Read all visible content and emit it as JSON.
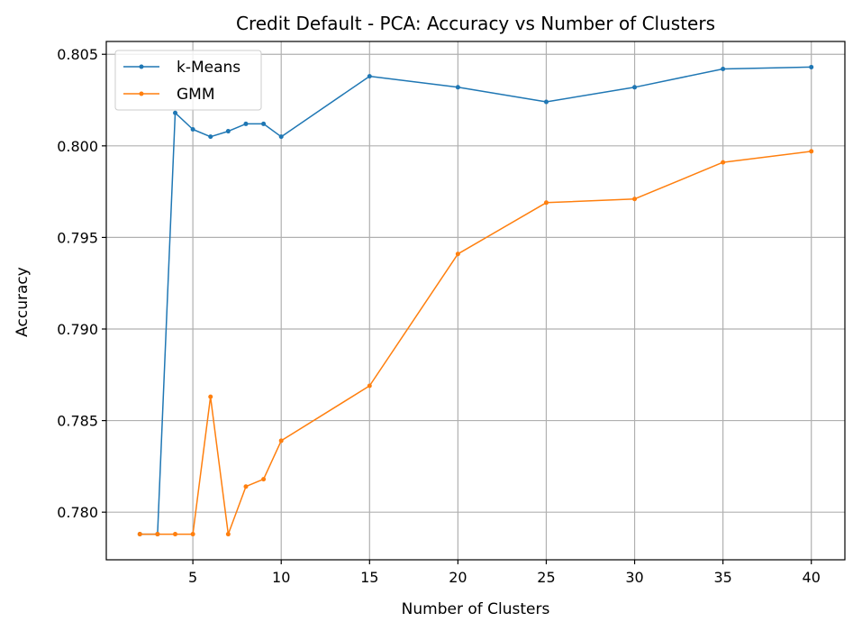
{
  "chart_data": {
    "type": "line",
    "title": "Credit Default - PCA: Accuracy vs Number of Clusters",
    "xlabel": "Number of Clusters",
    "ylabel": "Accuracy",
    "xlim": [
      0.1,
      41.9
    ],
    "ylim": [
      0.7774,
      0.8057
    ],
    "xticks": [
      5,
      10,
      15,
      20,
      25,
      30,
      35,
      40
    ],
    "xtick_labels": [
      "5",
      "10",
      "15",
      "20",
      "25",
      "30",
      "35",
      "40"
    ],
    "yticks": [
      0.78,
      0.785,
      0.79,
      0.795,
      0.8,
      0.805
    ],
    "ytick_labels": [
      "0.780",
      "0.785",
      "0.790",
      "0.795",
      "0.800",
      "0.805"
    ],
    "grid": true,
    "legend_position": "upper-left",
    "series": [
      {
        "name": "k-Means",
        "color": "#1f77b4",
        "x": [
          2,
          3,
          4,
          5,
          6,
          7,
          8,
          9,
          10,
          15,
          20,
          25,
          30,
          35,
          40
        ],
        "y": [
          0.7788,
          0.7788,
          0.8018,
          0.8009,
          0.8005,
          0.8008,
          0.8012,
          0.8012,
          0.8005,
          0.8038,
          0.8032,
          0.8024,
          0.8032,
          0.8042,
          0.8043
        ]
      },
      {
        "name": "GMM",
        "color": "#ff7f0e",
        "x": [
          2,
          3,
          4,
          5,
          6,
          7,
          8,
          9,
          10,
          15,
          20,
          25,
          30,
          35,
          40
        ],
        "y": [
          0.7788,
          0.7788,
          0.7788,
          0.7788,
          0.7863,
          0.7788,
          0.7814,
          0.7818,
          0.7839,
          0.7869,
          0.7941,
          0.7969,
          0.7971,
          0.7991,
          0.7997
        ]
      }
    ]
  }
}
